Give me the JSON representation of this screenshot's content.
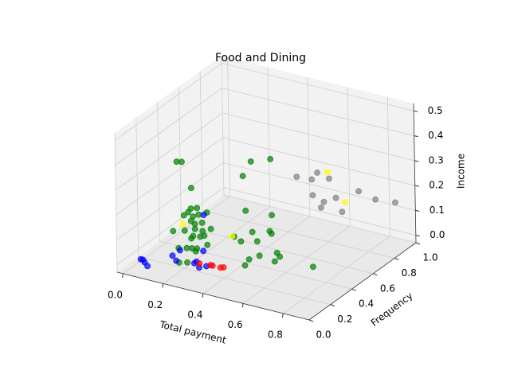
{
  "chart_data": {
    "type": "scatter3d",
    "title": "Food and Dining",
    "x_label": "Total payment",
    "y_label": "Frequency",
    "z_label": "Income",
    "xlim": [
      -0.03,
      0.93
    ],
    "ylim": [
      0,
      1
    ],
    "zlim": [
      -0.03,
      0.53
    ],
    "xticks": [
      {
        "value": 0,
        "label": "0.0"
      },
      0.2,
      0.4,
      0.6,
      0.8
    ],
    "yticks": [
      {
        "value": 0,
        "label": "0.0"
      },
      0.2,
      0.4,
      0.6,
      0.8,
      {
        "value": 1,
        "label": "1.0"
      }
    ],
    "zticks": [
      {
        "value": 0,
        "label": "0.0"
      },
      0.1,
      0.2,
      0.3,
      0.4,
      0.5
    ],
    "grid": true,
    "series": [
      {
        "color": "#008000",
        "x": [
          0.05,
          0.07,
          0.11,
          0.15,
          0.17,
          0.12,
          0.12,
          0.16,
          0.21,
          0.23,
          0.15,
          0.18,
          0.2,
          0.07,
          0.15,
          0.18,
          0.18,
          0.2,
          0.17,
          0.2,
          0.21,
          0.15,
          0.14,
          0.17,
          0.19,
          0.21,
          0.23,
          0.22,
          0.19,
          0.22,
          0.39,
          0.45,
          0.37,
          0.3,
          0.42,
          0.43,
          0.45,
          0.37,
          0.3,
          0.35,
          0.41,
          0.53,
          0.56,
          0.48,
          0.46,
          0.45,
          0.54,
          0.71
        ],
        "y": [
          0.42,
          0.43,
          0.44,
          0.36,
          0.38,
          0.39,
          0.35,
          0.36,
          0.32,
          0.36,
          0.36,
          0.34,
          0.37,
          0.34,
          0.3,
          0.34,
          0.41,
          0.45,
          0.34,
          0.35,
          0.37,
          0.36,
          0.26,
          0.28,
          0.29,
          0.3,
          0.36,
          0.19,
          0.17,
          0.27,
          0.48,
          0.55,
          0.44,
          0.59,
          0.61,
          0.57,
          0.55,
          0.52,
          0.48,
          0.45,
          0.49,
          0.45,
          0.42,
          0.38,
          0.32,
          0.3,
          0.41,
          0.45
        ],
        "z": [
          0.3,
          0.3,
          0.2,
          0.15,
          0.15,
          0.12,
          0.12,
          0.12,
          0.15,
          0.15,
          0.1,
          0.1,
          0.1,
          0.05,
          0.08,
          0.08,
          0.05,
          0.05,
          0.05,
          0.05,
          0.05,
          0.03,
          0.02,
          0.02,
          0.02,
          0.02,
          0.02,
          0,
          0,
          0.02,
          0.35,
          0.35,
          0.3,
          0.1,
          0.1,
          0.05,
          0.05,
          0.05,
          0.03,
          0.03,
          0.03,
          0.02,
          0.02,
          0.02,
          0.02,
          0,
          0,
          0
        ]
      },
      {
        "color": "#0000ff",
        "x": [
          0.03,
          0.06,
          0.09,
          0.04,
          0.13,
          0.17,
          0.13,
          0.25,
          0.29,
          0.31,
          0.22,
          0.25,
          0.23
        ],
        "y": [
          0.11,
          0.09,
          0.06,
          0.11,
          0.22,
          0.18,
          0.29,
          0.2,
          0.17,
          0.2,
          0.34,
          0.22,
          0.33
        ],
        "z": [
          0,
          0,
          0,
          0,
          0,
          0,
          0,
          0,
          0,
          0,
          0,
          0,
          0.15
        ]
      },
      {
        "color": "#ff0000",
        "x": [
          0.27,
          0.32,
          0.33,
          0.38,
          0.37
        ],
        "y": [
          0.21,
          0.22,
          0.22,
          0.23,
          0.22
        ],
        "z": [
          0,
          0,
          0,
          0,
          0
        ]
      },
      {
        "color": "#808080",
        "x": [
          0.38,
          0.5,
          0.51,
          0.45,
          0.47,
          0.57,
          0.52,
          0.5,
          0.75,
          0.79,
          0.84,
          0.6
        ],
        "y": [
          0.92,
          0.89,
          0.98,
          0.93,
          0.9,
          0.93,
          0.91,
          0.92,
          0.81,
          0.89,
          0.98,
          0.93
        ],
        "z": [
          0.15,
          0.2,
          0.15,
          0.15,
          0.1,
          0.1,
          0.08,
          0.05,
          0.2,
          0.15,
          0.12,
          0.05
        ]
      },
      {
        "color": "#ffff00",
        "x": [
          0.07,
          0.29,
          0.6,
          0.6
        ],
        "y": [
          0.43,
          0.48,
          0.8,
          0.96
        ],
        "z": [
          0.05,
          0.03,
          0.25,
          0.08
        ]
      }
    ]
  }
}
